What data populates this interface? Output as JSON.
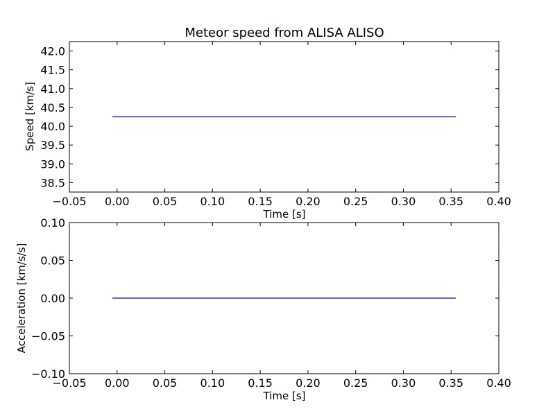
{
  "chart_data": [
    {
      "type": "line",
      "title": "Meteor speed from  ALISA ALISO",
      "xlabel": "Time [s]",
      "ylabel": "Speed [km/s]",
      "xlim": [
        -0.05,
        0.4
      ],
      "ylim": [
        38.25,
        42.25
      ],
      "xticks": [
        "−0.05",
        "0.00",
        "0.05",
        "0.10",
        "0.15",
        "0.20",
        "0.25",
        "0.30",
        "0.35",
        "0.40"
      ],
      "yticks": [
        "38.5",
        "39.0",
        "39.5",
        "40.0",
        "40.5",
        "41.0",
        "41.5",
        "42.0"
      ],
      "grid": false,
      "series": [
        {
          "color": "#0000ff",
          "x": [
            -0.005,
            0.355
          ],
          "y": [
            40.25,
            40.25
          ]
        }
      ]
    },
    {
      "type": "line",
      "title": "",
      "xlabel": "Time [s]",
      "ylabel": "Acceleration [km/s/s]",
      "xlim": [
        -0.05,
        0.4
      ],
      "ylim": [
        -0.1,
        0.1
      ],
      "xticks": [
        "−0.05",
        "0.00",
        "0.05",
        "0.10",
        "0.15",
        "0.20",
        "0.25",
        "0.30",
        "0.35",
        "0.40"
      ],
      "yticks": [
        "−0.10",
        "−0.05",
        "0.00",
        "0.05",
        "0.10"
      ],
      "grid": false,
      "series": [
        {
          "color": "#0000ff",
          "x": [
            -0.005,
            0.355
          ],
          "y": [
            0.0,
            0.0
          ]
        }
      ]
    }
  ]
}
